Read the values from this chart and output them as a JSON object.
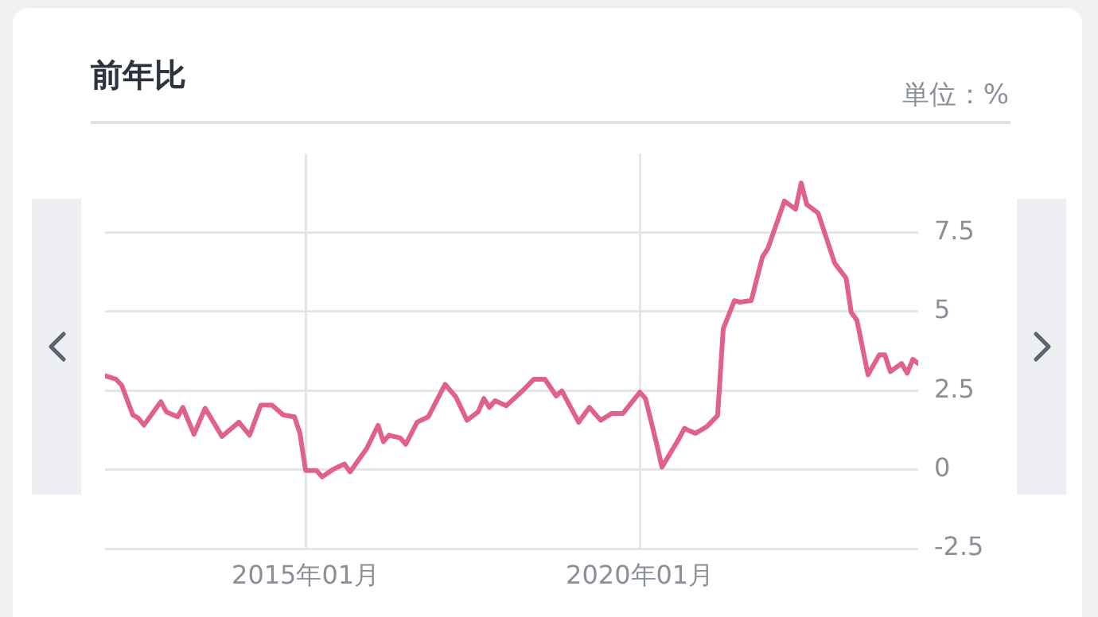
{
  "chart_data": {
    "type": "line",
    "title": "前年比",
    "ylabel": "単位：%",
    "x": [
      "2012-01",
      "2012-03",
      "2012-04",
      "2012-06",
      "2012-07",
      "2012-08",
      "2012-11",
      "2012-12",
      "2013-02",
      "2013-03",
      "2013-05",
      "2013-07",
      "2013-10",
      "2014-01",
      "2014-03",
      "2014-05",
      "2014-07",
      "2014-09",
      "2014-11",
      "2014-12",
      "2015-01",
      "2015-03",
      "2015-04",
      "2015-06",
      "2015-08",
      "2015-09",
      "2015-12",
      "2016-02",
      "2016-03",
      "2016-04",
      "2016-06",
      "2016-07",
      "2016-09",
      "2016-11",
      "2017-02",
      "2017-04",
      "2017-06",
      "2017-08",
      "2017-09",
      "2017-10",
      "2017-11",
      "2018-01",
      "2018-04",
      "2018-06",
      "2018-08",
      "2018-10",
      "2018-11",
      "2019-02",
      "2019-04",
      "2019-06",
      "2019-08",
      "2019-10",
      "2020-01",
      "2020-02",
      "2020-04",
      "2020-05",
      "2020-08",
      "2020-09",
      "2020-10",
      "2020-11",
      "2021-01",
      "2021-03",
      "2021-04",
      "2021-06",
      "2021-07",
      "2021-09",
      "2021-11",
      "2021-12",
      "2022-03",
      "2022-05",
      "2022-06",
      "2022-07",
      "2022-09",
      "2022-12",
      "2023-02",
      "2023-03",
      "2023-04",
      "2023-06",
      "2023-08",
      "2023-09",
      "2023-10",
      "2023-12",
      "2024-01",
      "2024-02",
      "2024-03"
    ],
    "series": [
      {
        "color": "#e0608f",
        "values": [
          2.97,
          2.86,
          2.67,
          1.73,
          1.63,
          1.41,
          2.15,
          1.83,
          1.67,
          1.97,
          1.12,
          1.94,
          1.05,
          1.5,
          1.09,
          2.04,
          2.04,
          1.73,
          1.67,
          1.15,
          -0.03,
          -0.03,
          -0.23,
          0.01,
          0.18,
          -0.07,
          0.67,
          1.4,
          0.88,
          1.09,
          1.0,
          0.8,
          1.5,
          1.67,
          2.7,
          2.3,
          1.56,
          1.83,
          2.25,
          1.97,
          2.18,
          2.02,
          2.5,
          2.86,
          2.86,
          2.33,
          2.49,
          1.5,
          1.97,
          1.56,
          1.78,
          1.78,
          2.45,
          2.25,
          0.84,
          0.08,
          0.97,
          1.31,
          1.22,
          1.15,
          1.36,
          1.71,
          4.46,
          5.35,
          5.3,
          5.35,
          6.73,
          7.0,
          8.5,
          8.24,
          9.07,
          8.39,
          8.12,
          6.53,
          6.06,
          4.98,
          4.73,
          3.0,
          3.63,
          3.63,
          3.1,
          3.36,
          3.05,
          3.49,
          3.36
        ]
      }
    ],
    "xlim": [
      "2012-01",
      "2024-03"
    ],
    "xticks": [
      {
        "value": "2015-01",
        "label": "2015年01月"
      },
      {
        "value": "2020-01",
        "label": "2020年01月"
      }
    ],
    "ylim": [
      -2.5,
      10
    ],
    "yticks": [
      -2.5,
      0,
      2.5,
      5,
      7.5
    ],
    "grid": true
  }
}
